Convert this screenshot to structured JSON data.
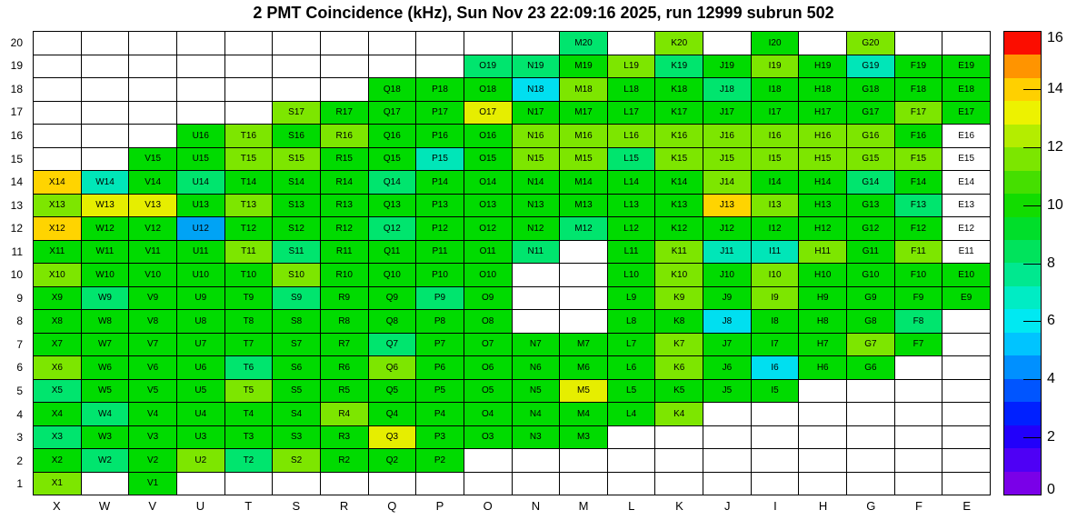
{
  "title": "2 PMT Coincidence (kHz), Sun Nov 23 22:09:16 2025, run 12999 subrun 502",
  "chart_data": {
    "type": "heatmap",
    "title": "2 PMT Coincidence (kHz), Sun Nov 23 22:09:16 2025, run 12999 subrun 502",
    "x_categories": [
      "X",
      "W",
      "V",
      "U",
      "T",
      "S",
      "R",
      "Q",
      "P",
      "O",
      "N",
      "M",
      "L",
      "K",
      "J",
      "I",
      "H",
      "G",
      "F",
      "E"
    ],
    "y_categories": [
      1,
      2,
      3,
      4,
      5,
      6,
      7,
      8,
      9,
      10,
      11,
      12,
      13,
      14,
      15,
      16,
      17,
      18,
      19,
      20
    ],
    "grid_on": true,
    "colorbar": {
      "min": 0,
      "max": 16,
      "ticks": [
        0,
        2,
        4,
        6,
        8,
        10,
        12,
        14,
        16
      ],
      "bands_bottom_to_top": [
        "#7A00E8",
        "#4E00F5",
        "#2200FA",
        "#0020FF",
        "#0055FF",
        "#0090FF",
        "#00C4FF",
        "#00E9F2",
        "#00ECC4",
        "#00E88F",
        "#00E35C",
        "#00DE2A",
        "#12DC00",
        "#45DF00",
        "#7CE600",
        "#B4ED00",
        "#EDF200",
        "#FFD000",
        "#FF9400",
        "#FB0D00"
      ]
    },
    "palette": {
      "G": {
        "hex": "#00DB00",
        "value": 9.4
      },
      "YG": {
        "hex": "#7DE600",
        "value": 11.2
      },
      "Y": {
        "hex": "#E6EE00",
        "value": 12.6
      },
      "GD": {
        "hex": "#FFD400",
        "value": 13.4
      },
      "SG": {
        "hex": "#00E56E",
        "value": 7.5
      },
      "TQ": {
        "hex": "#00E6B8",
        "value": 6.5
      },
      "CY": {
        "hex": "#00DFF0",
        "value": 5.5
      },
      "BL": {
        "hex": "#00A3F5",
        "value": 4.5
      },
      "WH": {
        "hex": "#FFFFFF",
        "value": 0
      }
    },
    "cells": [
      {
        "l": "M20",
        "c": "SG"
      },
      {
        "l": "K20",
        "c": "YG"
      },
      {
        "l": "I20",
        "c": "G"
      },
      {
        "l": "G20",
        "c": "YG"
      },
      {
        "l": "O19",
        "c": "SG"
      },
      {
        "l": "N19",
        "c": "SG"
      },
      {
        "l": "M19",
        "c": "G"
      },
      {
        "l": "L19",
        "c": "YG"
      },
      {
        "l": "K19",
        "c": "SG"
      },
      {
        "l": "J19",
        "c": "G"
      },
      {
        "l": "I19",
        "c": "YG"
      },
      {
        "l": "H19",
        "c": "G"
      },
      {
        "l": "G19",
        "c": "TQ"
      },
      {
        "l": "F19",
        "c": "G"
      },
      {
        "l": "E19",
        "c": "G"
      },
      {
        "l": "Q18",
        "c": "G"
      },
      {
        "l": "P18",
        "c": "G"
      },
      {
        "l": "O18",
        "c": "G"
      },
      {
        "l": "N18",
        "c": "CY"
      },
      {
        "l": "M18",
        "c": "YG"
      },
      {
        "l": "L18",
        "c": "G"
      },
      {
        "l": "K18",
        "c": "G"
      },
      {
        "l": "J18",
        "c": "SG"
      },
      {
        "l": "I18",
        "c": "G"
      },
      {
        "l": "H18",
        "c": "G"
      },
      {
        "l": "G18",
        "c": "G"
      },
      {
        "l": "F18",
        "c": "G"
      },
      {
        "l": "E18",
        "c": "G"
      },
      {
        "l": "S17",
        "c": "YG"
      },
      {
        "l": "R17",
        "c": "G"
      },
      {
        "l": "Q17",
        "c": "G"
      },
      {
        "l": "P17",
        "c": "G"
      },
      {
        "l": "O17",
        "c": "Y"
      },
      {
        "l": "N17",
        "c": "G"
      },
      {
        "l": "M17",
        "c": "G"
      },
      {
        "l": "L17",
        "c": "G"
      },
      {
        "l": "K17",
        "c": "G"
      },
      {
        "l": "J17",
        "c": "G"
      },
      {
        "l": "I17",
        "c": "G"
      },
      {
        "l": "H17",
        "c": "G"
      },
      {
        "l": "G17",
        "c": "G"
      },
      {
        "l": "F17",
        "c": "YG"
      },
      {
        "l": "E17",
        "c": "G"
      },
      {
        "l": "U16",
        "c": "G"
      },
      {
        "l": "T16",
        "c": "YG"
      },
      {
        "l": "S16",
        "c": "G"
      },
      {
        "l": "R16",
        "c": "YG"
      },
      {
        "l": "Q16",
        "c": "G"
      },
      {
        "l": "P16",
        "c": "G"
      },
      {
        "l": "O16",
        "c": "G"
      },
      {
        "l": "N16",
        "c": "YG"
      },
      {
        "l": "M16",
        "c": "YG"
      },
      {
        "l": "L16",
        "c": "YG"
      },
      {
        "l": "K16",
        "c": "YG"
      },
      {
        "l": "J16",
        "c": "YG"
      },
      {
        "l": "I16",
        "c": "YG"
      },
      {
        "l": "H16",
        "c": "YG"
      },
      {
        "l": "G16",
        "c": "YG"
      },
      {
        "l": "F16",
        "c": "G"
      },
      {
        "l": "E16",
        "c": "WH"
      },
      {
        "l": "V15",
        "c": "G"
      },
      {
        "l": "U15",
        "c": "G"
      },
      {
        "l": "T15",
        "c": "YG"
      },
      {
        "l": "S15",
        "c": "YG"
      },
      {
        "l": "R15",
        "c": "G"
      },
      {
        "l": "Q15",
        "c": "G"
      },
      {
        "l": "P15",
        "c": "TQ"
      },
      {
        "l": "O15",
        "c": "G"
      },
      {
        "l": "N15",
        "c": "YG"
      },
      {
        "l": "M15",
        "c": "YG"
      },
      {
        "l": "L15",
        "c": "SG"
      },
      {
        "l": "K15",
        "c": "YG"
      },
      {
        "l": "J15",
        "c": "YG"
      },
      {
        "l": "I15",
        "c": "YG"
      },
      {
        "l": "H15",
        "c": "YG"
      },
      {
        "l": "G15",
        "c": "YG"
      },
      {
        "l": "F15",
        "c": "YG"
      },
      {
        "l": "E15",
        "c": "WH"
      },
      {
        "l": "X14",
        "c": "GD"
      },
      {
        "l": "W14",
        "c": "TQ"
      },
      {
        "l": "V14",
        "c": "G"
      },
      {
        "l": "U14",
        "c": "SG"
      },
      {
        "l": "T14",
        "c": "G"
      },
      {
        "l": "S14",
        "c": "G"
      },
      {
        "l": "R14",
        "c": "G"
      },
      {
        "l": "Q14",
        "c": "SG"
      },
      {
        "l": "P14",
        "c": "G"
      },
      {
        "l": "O14",
        "c": "G"
      },
      {
        "l": "N14",
        "c": "G"
      },
      {
        "l": "M14",
        "c": "G"
      },
      {
        "l": "L14",
        "c": "G"
      },
      {
        "l": "K14",
        "c": "G"
      },
      {
        "l": "J14",
        "c": "YG"
      },
      {
        "l": "I14",
        "c": "G"
      },
      {
        "l": "H14",
        "c": "G"
      },
      {
        "l": "G14",
        "c": "SG"
      },
      {
        "l": "F14",
        "c": "G"
      },
      {
        "l": "E14",
        "c": "WH"
      },
      {
        "l": "X13",
        "c": "YG"
      },
      {
        "l": "W13",
        "c": "Y"
      },
      {
        "l": "V13",
        "c": "Y"
      },
      {
        "l": "U13",
        "c": "G"
      },
      {
        "l": "T13",
        "c": "YG"
      },
      {
        "l": "S13",
        "c": "G"
      },
      {
        "l": "R13",
        "c": "G"
      },
      {
        "l": "Q13",
        "c": "G"
      },
      {
        "l": "P13",
        "c": "G"
      },
      {
        "l": "O13",
        "c": "G"
      },
      {
        "l": "N13",
        "c": "G"
      },
      {
        "l": "M13",
        "c": "G"
      },
      {
        "l": "L13",
        "c": "G"
      },
      {
        "l": "K13",
        "c": "G"
      },
      {
        "l": "J13",
        "c": "GD"
      },
      {
        "l": "I13",
        "c": "YG"
      },
      {
        "l": "H13",
        "c": "G"
      },
      {
        "l": "G13",
        "c": "G"
      },
      {
        "l": "F13",
        "c": "SG"
      },
      {
        "l": "E13",
        "c": "WH"
      },
      {
        "l": "X12",
        "c": "GD"
      },
      {
        "l": "W12",
        "c": "G"
      },
      {
        "l": "V12",
        "c": "G"
      },
      {
        "l": "U12",
        "c": "BL"
      },
      {
        "l": "T12",
        "c": "G"
      },
      {
        "l": "S12",
        "c": "G"
      },
      {
        "l": "R12",
        "c": "G"
      },
      {
        "l": "Q12",
        "c": "SG"
      },
      {
        "l": "P12",
        "c": "G"
      },
      {
        "l": "O12",
        "c": "G"
      },
      {
        "l": "N12",
        "c": "G"
      },
      {
        "l": "M12",
        "c": "SG"
      },
      {
        "l": "L12",
        "c": "G"
      },
      {
        "l": "K12",
        "c": "G"
      },
      {
        "l": "J12",
        "c": "G"
      },
      {
        "l": "I12",
        "c": "G"
      },
      {
        "l": "H12",
        "c": "G"
      },
      {
        "l": "G12",
        "c": "G"
      },
      {
        "l": "F12",
        "c": "G"
      },
      {
        "l": "E12",
        "c": "WH"
      },
      {
        "l": "X11",
        "c": "G"
      },
      {
        "l": "W11",
        "c": "G"
      },
      {
        "l": "V11",
        "c": "G"
      },
      {
        "l": "U11",
        "c": "G"
      },
      {
        "l": "T11",
        "c": "YG"
      },
      {
        "l": "S11",
        "c": "SG"
      },
      {
        "l": "R11",
        "c": "G"
      },
      {
        "l": "Q11",
        "c": "G"
      },
      {
        "l": "P11",
        "c": "G"
      },
      {
        "l": "O11",
        "c": "G"
      },
      {
        "l": "N11",
        "c": "SG"
      },
      {
        "l": "L11",
        "c": "G"
      },
      {
        "l": "K11",
        "c": "YG"
      },
      {
        "l": "J11",
        "c": "TQ"
      },
      {
        "l": "I11",
        "c": "TQ"
      },
      {
        "l": "H11",
        "c": "YG"
      },
      {
        "l": "G11",
        "c": "G"
      },
      {
        "l": "F11",
        "c": "YG"
      },
      {
        "l": "E11",
        "c": "WH"
      },
      {
        "l": "X10",
        "c": "YG"
      },
      {
        "l": "W10",
        "c": "G"
      },
      {
        "l": "V10",
        "c": "G"
      },
      {
        "l": "U10",
        "c": "G"
      },
      {
        "l": "T10",
        "c": "G"
      },
      {
        "l": "S10",
        "c": "YG"
      },
      {
        "l": "R10",
        "c": "G"
      },
      {
        "l": "Q10",
        "c": "G"
      },
      {
        "l": "P10",
        "c": "G"
      },
      {
        "l": "O10",
        "c": "G"
      },
      {
        "l": "L10",
        "c": "G"
      },
      {
        "l": "K10",
        "c": "YG"
      },
      {
        "l": "J10",
        "c": "G"
      },
      {
        "l": "I10",
        "c": "YG"
      },
      {
        "l": "H10",
        "c": "G"
      },
      {
        "l": "G10",
        "c": "G"
      },
      {
        "l": "F10",
        "c": "G"
      },
      {
        "l": "E10",
        "c": "G"
      },
      {
        "l": "X9",
        "c": "G"
      },
      {
        "l": "W9",
        "c": "SG"
      },
      {
        "l": "V9",
        "c": "G"
      },
      {
        "l": "U9",
        "c": "G"
      },
      {
        "l": "T9",
        "c": "G"
      },
      {
        "l": "S9",
        "c": "SG"
      },
      {
        "l": "R9",
        "c": "G"
      },
      {
        "l": "Q9",
        "c": "G"
      },
      {
        "l": "P9",
        "c": "SG"
      },
      {
        "l": "O9",
        "c": "G"
      },
      {
        "l": "L9",
        "c": "G"
      },
      {
        "l": "K9",
        "c": "YG"
      },
      {
        "l": "J9",
        "c": "G"
      },
      {
        "l": "I9",
        "c": "YG"
      },
      {
        "l": "H9",
        "c": "G"
      },
      {
        "l": "G9",
        "c": "G"
      },
      {
        "l": "F9",
        "c": "G"
      },
      {
        "l": "E9",
        "c": "G"
      },
      {
        "l": "X8",
        "c": "G"
      },
      {
        "l": "W8",
        "c": "G"
      },
      {
        "l": "V8",
        "c": "G"
      },
      {
        "l": "U8",
        "c": "G"
      },
      {
        "l": "T8",
        "c": "G"
      },
      {
        "l": "S8",
        "c": "G"
      },
      {
        "l": "R8",
        "c": "G"
      },
      {
        "l": "Q8",
        "c": "G"
      },
      {
        "l": "P8",
        "c": "G"
      },
      {
        "l": "O8",
        "c": "G"
      },
      {
        "l": "L8",
        "c": "G"
      },
      {
        "l": "K8",
        "c": "G"
      },
      {
        "l": "J8",
        "c": "CY"
      },
      {
        "l": "I8",
        "c": "G"
      },
      {
        "l": "H8",
        "c": "G"
      },
      {
        "l": "G8",
        "c": "G"
      },
      {
        "l": "F8",
        "c": "SG"
      },
      {
        "l": "X7",
        "c": "G"
      },
      {
        "l": "W7",
        "c": "G"
      },
      {
        "l": "V7",
        "c": "G"
      },
      {
        "l": "U7",
        "c": "G"
      },
      {
        "l": "T7",
        "c": "G"
      },
      {
        "l": "S7",
        "c": "G"
      },
      {
        "l": "R7",
        "c": "G"
      },
      {
        "l": "Q7",
        "c": "SG"
      },
      {
        "l": "P7",
        "c": "G"
      },
      {
        "l": "O7",
        "c": "G"
      },
      {
        "l": "N7",
        "c": "G"
      },
      {
        "l": "M7",
        "c": "G"
      },
      {
        "l": "L7",
        "c": "G"
      },
      {
        "l": "K7",
        "c": "YG"
      },
      {
        "l": "J7",
        "c": "G"
      },
      {
        "l": "I7",
        "c": "G"
      },
      {
        "l": "H7",
        "c": "G"
      },
      {
        "l": "G7",
        "c": "YG"
      },
      {
        "l": "F7",
        "c": "G"
      },
      {
        "l": "X6",
        "c": "YG"
      },
      {
        "l": "W6",
        "c": "G"
      },
      {
        "l": "V6",
        "c": "G"
      },
      {
        "l": "U6",
        "c": "G"
      },
      {
        "l": "T6",
        "c": "SG"
      },
      {
        "l": "S6",
        "c": "G"
      },
      {
        "l": "R6",
        "c": "G"
      },
      {
        "l": "Q6",
        "c": "YG"
      },
      {
        "l": "P6",
        "c": "G"
      },
      {
        "l": "O6",
        "c": "G"
      },
      {
        "l": "N6",
        "c": "G"
      },
      {
        "l": "M6",
        "c": "G"
      },
      {
        "l": "L6",
        "c": "G"
      },
      {
        "l": "K6",
        "c": "YG"
      },
      {
        "l": "J6",
        "c": "G"
      },
      {
        "l": "I6",
        "c": "CY"
      },
      {
        "l": "H6",
        "c": "G"
      },
      {
        "l": "G6",
        "c": "G"
      },
      {
        "l": "X5",
        "c": "SG"
      },
      {
        "l": "W5",
        "c": "G"
      },
      {
        "l": "V5",
        "c": "G"
      },
      {
        "l": "U5",
        "c": "G"
      },
      {
        "l": "T5",
        "c": "YG"
      },
      {
        "l": "S5",
        "c": "G"
      },
      {
        "l": "R5",
        "c": "G"
      },
      {
        "l": "Q5",
        "c": "G"
      },
      {
        "l": "P5",
        "c": "G"
      },
      {
        "l": "O5",
        "c": "G"
      },
      {
        "l": "N5",
        "c": "G"
      },
      {
        "l": "M5",
        "c": "Y"
      },
      {
        "l": "L5",
        "c": "G"
      },
      {
        "l": "K5",
        "c": "G"
      },
      {
        "l": "J5",
        "c": "G"
      },
      {
        "l": "I5",
        "c": "G"
      },
      {
        "l": "X4",
        "c": "G"
      },
      {
        "l": "W4",
        "c": "SG"
      },
      {
        "l": "V4",
        "c": "G"
      },
      {
        "l": "U4",
        "c": "G"
      },
      {
        "l": "T4",
        "c": "G"
      },
      {
        "l": "S4",
        "c": "G"
      },
      {
        "l": "R4",
        "c": "YG"
      },
      {
        "l": "Q4",
        "c": "G"
      },
      {
        "l": "P4",
        "c": "G"
      },
      {
        "l": "O4",
        "c": "G"
      },
      {
        "l": "N4",
        "c": "G"
      },
      {
        "l": "M4",
        "c": "G"
      },
      {
        "l": "L4",
        "c": "G"
      },
      {
        "l": "K4",
        "c": "YG"
      },
      {
        "l": "X3",
        "c": "SG"
      },
      {
        "l": "W3",
        "c": "G"
      },
      {
        "l": "V3",
        "c": "G"
      },
      {
        "l": "U3",
        "c": "G"
      },
      {
        "l": "T3",
        "c": "G"
      },
      {
        "l": "S3",
        "c": "G"
      },
      {
        "l": "R3",
        "c": "G"
      },
      {
        "l": "Q3",
        "c": "Y"
      },
      {
        "l": "P3",
        "c": "G"
      },
      {
        "l": "O3",
        "c": "G"
      },
      {
        "l": "N3",
        "c": "G"
      },
      {
        "l": "M3",
        "c": "G"
      },
      {
        "l": "X2",
        "c": "G"
      },
      {
        "l": "W2",
        "c": "SG"
      },
      {
        "l": "V2",
        "c": "G"
      },
      {
        "l": "U2",
        "c": "YG"
      },
      {
        "l": "T2",
        "c": "SG"
      },
      {
        "l": "S2",
        "c": "YG"
      },
      {
        "l": "R2",
        "c": "G"
      },
      {
        "l": "Q2",
        "c": "G"
      },
      {
        "l": "P2",
        "c": "G"
      },
      {
        "l": "X1",
        "c": "YG"
      },
      {
        "l": "V1",
        "c": "G"
      }
    ]
  }
}
